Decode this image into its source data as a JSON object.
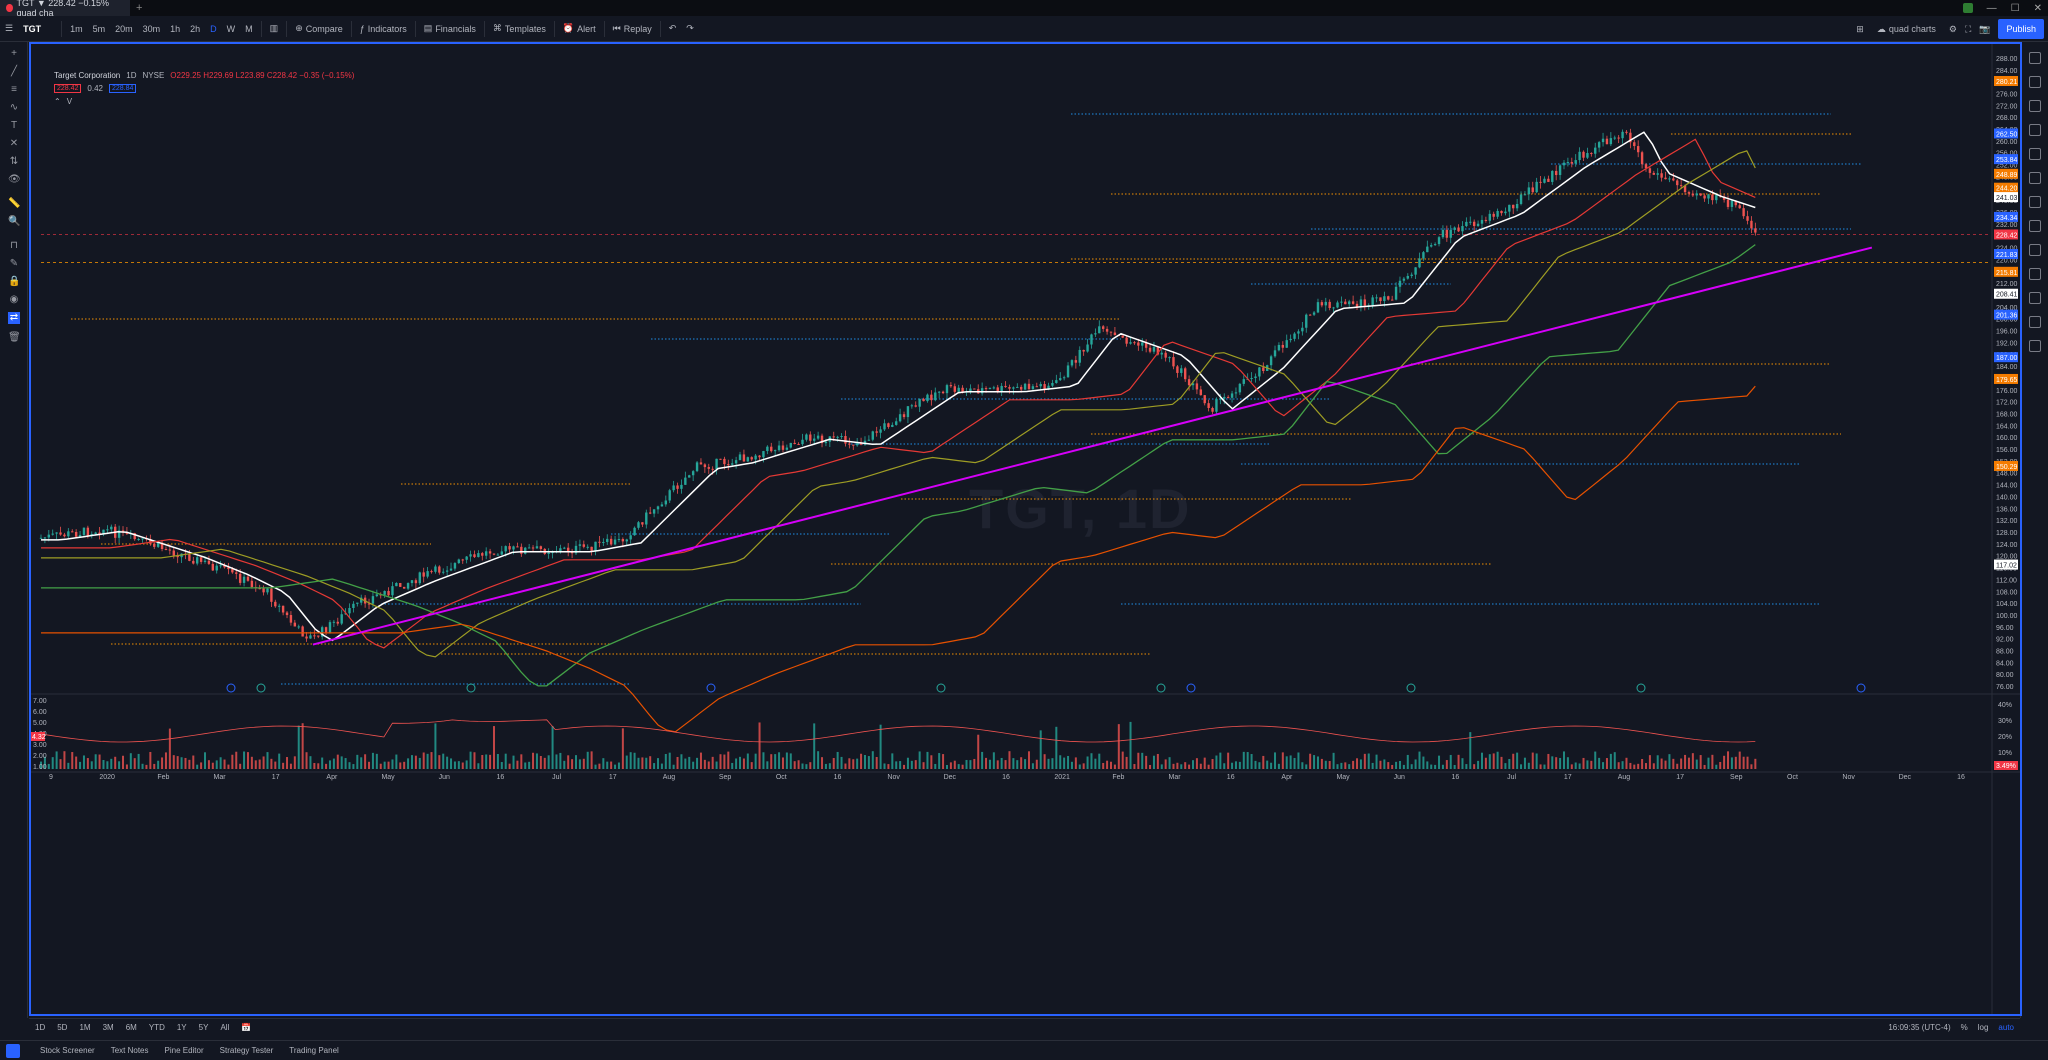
{
  "browser": {
    "tab_title": "TGT ▼ 228.42 −0.15% quad cha",
    "new_tab": "+"
  },
  "toolbar": {
    "symbol": "TGT",
    "intervals": [
      "1m",
      "5m",
      "20m",
      "30m",
      "1h",
      "2h",
      "D",
      "W",
      "M"
    ],
    "compare": "Compare",
    "indicators": "Indicators",
    "financials": "Financials",
    "templates": "Templates",
    "alert": "Alert",
    "replay": "Replay",
    "layout_name": "quad charts",
    "publish": "Publish"
  },
  "legend": {
    "name": "Target Corporation",
    "interval": "1D",
    "exchange": "NYSE",
    "ohlc": "O229.25 H229.69 L223.89 C228.42 −0.35 (−0.15%)",
    "bid": "228.42",
    "spread": "0.42",
    "ask": "228.84",
    "indicator": "V",
    "volume_ma_tag": "4.32"
  },
  "watermark": {
    "line1": "TGT, 1D"
  },
  "price_axis": [
    "288.00",
    "284.00",
    "280.00",
    "276.00",
    "272.00",
    "268.00",
    "264.00",
    "260.00",
    "256.00",
    "252.00",
    "248.00",
    "244.00",
    "240.00",
    "236.00",
    "232.00",
    "228.00",
    "224.00",
    "220.00",
    "216.00",
    "212.00",
    "208.00",
    "204.00",
    "200.00",
    "196.00",
    "192.00",
    "188.00",
    "184.00",
    "180.00",
    "176.00",
    "172.00",
    "168.00",
    "164.00",
    "160.00",
    "156.00",
    "152.00",
    "148.00",
    "144.00",
    "140.00",
    "136.00",
    "132.00",
    "128.00",
    "124.00",
    "120.00",
    "116.00",
    "112.00",
    "108.00",
    "104.00",
    "100.00",
    "96.00",
    "92.00",
    "88.00",
    "84.00",
    "80.00",
    "76.00"
  ],
  "price_tags": [
    {
      "value": "280.21",
      "color": "#f57c00"
    },
    {
      "value": "262.50",
      "color": "#2962ff"
    },
    {
      "value": "253.84",
      "color": "#2962ff"
    },
    {
      "value": "248.89",
      "color": "#f57c00"
    },
    {
      "value": "244.20",
      "color": "#f57c00"
    },
    {
      "value": "241.03",
      "color": "#ffffff"
    },
    {
      "value": "234.34",
      "color": "#2962ff"
    },
    {
      "value": "228.42",
      "color": "#f23645"
    },
    {
      "value": "221.83",
      "color": "#2962ff"
    },
    {
      "value": "215.81",
      "color": "#f57c00"
    },
    {
      "value": "208.41",
      "color": "#ffffff"
    },
    {
      "value": "201.36",
      "color": "#2962ff"
    },
    {
      "value": "187.00",
      "color": "#2962ff"
    },
    {
      "value": "179.65",
      "color": "#f57c00"
    },
    {
      "value": "150.29",
      "color": "#f57c00"
    },
    {
      "value": "117.02",
      "color": "#ffffff"
    }
  ],
  "volume_axis": [
    "7.00",
    "6.00",
    "5.00",
    "4.00",
    "3.00",
    "2.00",
    "1.00"
  ],
  "volume_pct_axis": [
    "40%",
    "30%",
    "20%",
    "10%"
  ],
  "volume_pct_tag": "3.49%",
  "time_axis": [
    "9",
    "2020",
    "Feb",
    "Mar",
    "17",
    "Apr",
    "May",
    "Jun",
    "16",
    "Jul",
    "17",
    "Aug",
    "Sep",
    "Oct",
    "16",
    "Nov",
    "Dec",
    "16",
    "2021",
    "Feb",
    "Mar",
    "16",
    "Apr",
    "May",
    "Jun",
    "16",
    "Jul",
    "17",
    "Aug",
    "17",
    "Sep",
    "Oct",
    "Nov",
    "Dec",
    "16"
  ],
  "bottom_bar": {
    "ranges": [
      "1D",
      "5D",
      "1M",
      "3M",
      "6M",
      "YTD",
      "1Y",
      "5Y",
      "All"
    ],
    "clock": "16:09:35 (UTC-4)",
    "percent": "%",
    "log": "log",
    "auto": "auto"
  },
  "bottom_tabs": [
    "Stock Screener",
    "Text Notes",
    "Pine Editor",
    "Strategy Tester",
    "Trading Panel"
  ],
  "chart_data": {
    "type": "candlestick",
    "symbol": "TGT",
    "interval": "1D",
    "y_range": [
      74,
      290
    ],
    "x_range": [
      "2019-12-09",
      "2021-12-31"
    ],
    "close_points": [
      {
        "x": "2019-12-09",
        "y": 126
      },
      {
        "x": "2020-01-02",
        "y": 129
      },
      {
        "x": "2020-02-03",
        "y": 120
      },
      {
        "x": "2020-02-20",
        "y": 114
      },
      {
        "x": "2020-03-05",
        "y": 108
      },
      {
        "x": "2020-03-17",
        "y": 95
      },
      {
        "x": "2020-03-23",
        "y": 92
      },
      {
        "x": "2020-04-10",
        "y": 104
      },
      {
        "x": "2020-05-01",
        "y": 112
      },
      {
        "x": "2020-06-01",
        "y": 122
      },
      {
        "x": "2020-07-01",
        "y": 122
      },
      {
        "x": "2020-07-20",
        "y": 125
      },
      {
        "x": "2020-08-18",
        "y": 150
      },
      {
        "x": "2020-09-01",
        "y": 152
      },
      {
        "x": "2020-10-01",
        "y": 160
      },
      {
        "x": "2020-10-20",
        "y": 158
      },
      {
        "x": "2020-11-20",
        "y": 176
      },
      {
        "x": "2020-12-15",
        "y": 176
      },
      {
        "x": "2021-01-04",
        "y": 178
      },
      {
        "x": "2021-01-20",
        "y": 196
      },
      {
        "x": "2021-02-15",
        "y": 188
      },
      {
        "x": "2021-03-05",
        "y": 170
      },
      {
        "x": "2021-03-25",
        "y": 184
      },
      {
        "x": "2021-04-15",
        "y": 204
      },
      {
        "x": "2021-05-12",
        "y": 206
      },
      {
        "x": "2021-06-01",
        "y": 228
      },
      {
        "x": "2021-06-25",
        "y": 236
      },
      {
        "x": "2021-07-20",
        "y": 252
      },
      {
        "x": "2021-08-12",
        "y": 264
      },
      {
        "x": "2021-08-20",
        "y": 250
      },
      {
        "x": "2021-09-10",
        "y": 242
      },
      {
        "x": "2021-09-24",
        "y": 238
      },
      {
        "x": "2021-10-01",
        "y": 228
      }
    ],
    "trendlines": [
      {
        "name": "magenta-trendline",
        "color": "#d500f9",
        "from": {
          "x": "2020-03-23",
          "y": 90
        },
        "to": {
          "x": "2021-11-15",
          "y": 224
        }
      }
    ],
    "moving_averages": [
      {
        "color": "#ffffff"
      },
      {
        "color": "#e53935"
      },
      {
        "color": "#9e9d24"
      },
      {
        "color": "#43a047"
      },
      {
        "color": "#e65100"
      }
    ],
    "grid": false
  }
}
